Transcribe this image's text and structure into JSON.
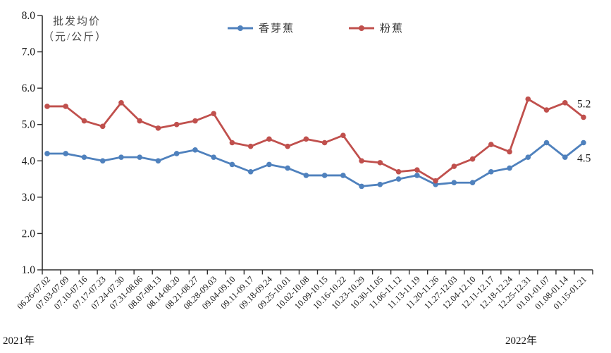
{
  "chart_data": {
    "type": "line",
    "title": "批发均价（元/公斤）",
    "ylabel_lines": [
      "批发均价",
      "（元/公斤）"
    ],
    "xlabel": "",
    "ylim": [
      1.0,
      8.0
    ],
    "ytick_labels": [
      "8.0",
      "7.0",
      "6.0",
      "5.0",
      "4.0",
      "3.0",
      "2.0",
      "1.0"
    ],
    "grid": false,
    "legend_position": "top-center",
    "axis_color": "#2e2e2e",
    "categories": [
      "06.26-07.02",
      "07.03-07.09",
      "07.10-07.16",
      "07.17-07.23",
      "07.24-07.30",
      "07.31-08.06",
      "08.07-08.13",
      "08.14-08.20",
      "08.21-08.27",
      "08.28-09.03",
      "09.04-09.10",
      "09.11-09.17",
      "09.18-09.24",
      "09.25-10.01",
      "10.02-10.08",
      "10.09-10.15",
      "10.16-10.22",
      "10.23-10.29",
      "10.30-11.05",
      "11.06-11.12",
      "11.13-11.19",
      "11.20-11.26",
      "11.27-12.03",
      "12.04-12.10",
      "12.11-12.17",
      "12.18-12.24",
      "12.25-12.31",
      "01.01-01.07",
      "01.08-01.14",
      "01.15-01.21"
    ],
    "series": [
      {
        "name": "香芽蕉",
        "color": "#4F81BD",
        "end_label": "4.5",
        "values": [
          4.2,
          4.2,
          4.1,
          4.0,
          4.1,
          4.1,
          4.0,
          4.2,
          4.3,
          4.1,
          3.9,
          3.7,
          3.9,
          3.8,
          3.6,
          3.6,
          3.6,
          3.3,
          3.35,
          3.5,
          3.6,
          3.35,
          3.4,
          3.4,
          3.7,
          3.8,
          4.1,
          4.5,
          4.1,
          4.5
        ]
      },
      {
        "name": "粉蕉",
        "color": "#C0504D",
        "end_label": "5.2",
        "values": [
          5.5,
          5.5,
          5.1,
          4.95,
          5.6,
          5.1,
          4.9,
          5.0,
          5.1,
          5.3,
          4.5,
          4.4,
          4.6,
          4.4,
          4.6,
          4.5,
          4.7,
          4.0,
          3.95,
          3.7,
          3.75,
          3.45,
          3.85,
          4.05,
          4.45,
          4.25,
          5.7,
          5.4,
          5.6,
          5.2
        ]
      }
    ],
    "x_axis_note_left": "2021年",
    "x_axis_note_right": "2022年"
  }
}
